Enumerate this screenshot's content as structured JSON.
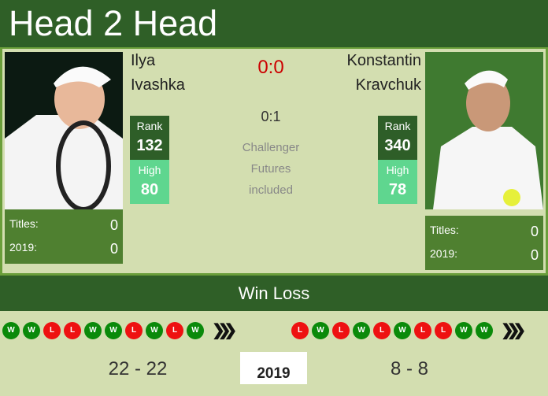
{
  "header": {
    "title": "Head 2 Head"
  },
  "h2h": {
    "score": "0:0",
    "secondary": "0:1",
    "note": [
      "Challenger",
      "Futures",
      "included"
    ]
  },
  "player1": {
    "first": "Ilya",
    "last": "Ivashka",
    "rank_label": "Rank",
    "rank": "132",
    "high_label": "High",
    "high": "80",
    "titles_label": "Titles:",
    "titles": "0",
    "year_label": "2019:",
    "year_titles": "0",
    "form": [
      "W",
      "W",
      "L",
      "L",
      "W",
      "W",
      "L",
      "W",
      "L",
      "W"
    ],
    "record": "22 - 22"
  },
  "player2": {
    "first": "Konstantin",
    "last": "Kravchuk",
    "rank_label": "Rank",
    "rank": "340",
    "high_label": "High",
    "high": "78",
    "titles_label": "Titles:",
    "titles": "0",
    "year_label": "2019:",
    "year_titles": "0",
    "form": [
      "L",
      "W",
      "L",
      "W",
      "L",
      "W",
      "L",
      "L",
      "W",
      "W"
    ],
    "record": "8 - 8"
  },
  "section": {
    "win_loss": "Win Loss",
    "year": "2019"
  },
  "colors": {
    "header": "#2f5f27",
    "win": "#0a8a0a",
    "loss": "#ee1111",
    "rank": "#2e5e28",
    "high": "#5fd68f",
    "score": "#cc0000"
  }
}
